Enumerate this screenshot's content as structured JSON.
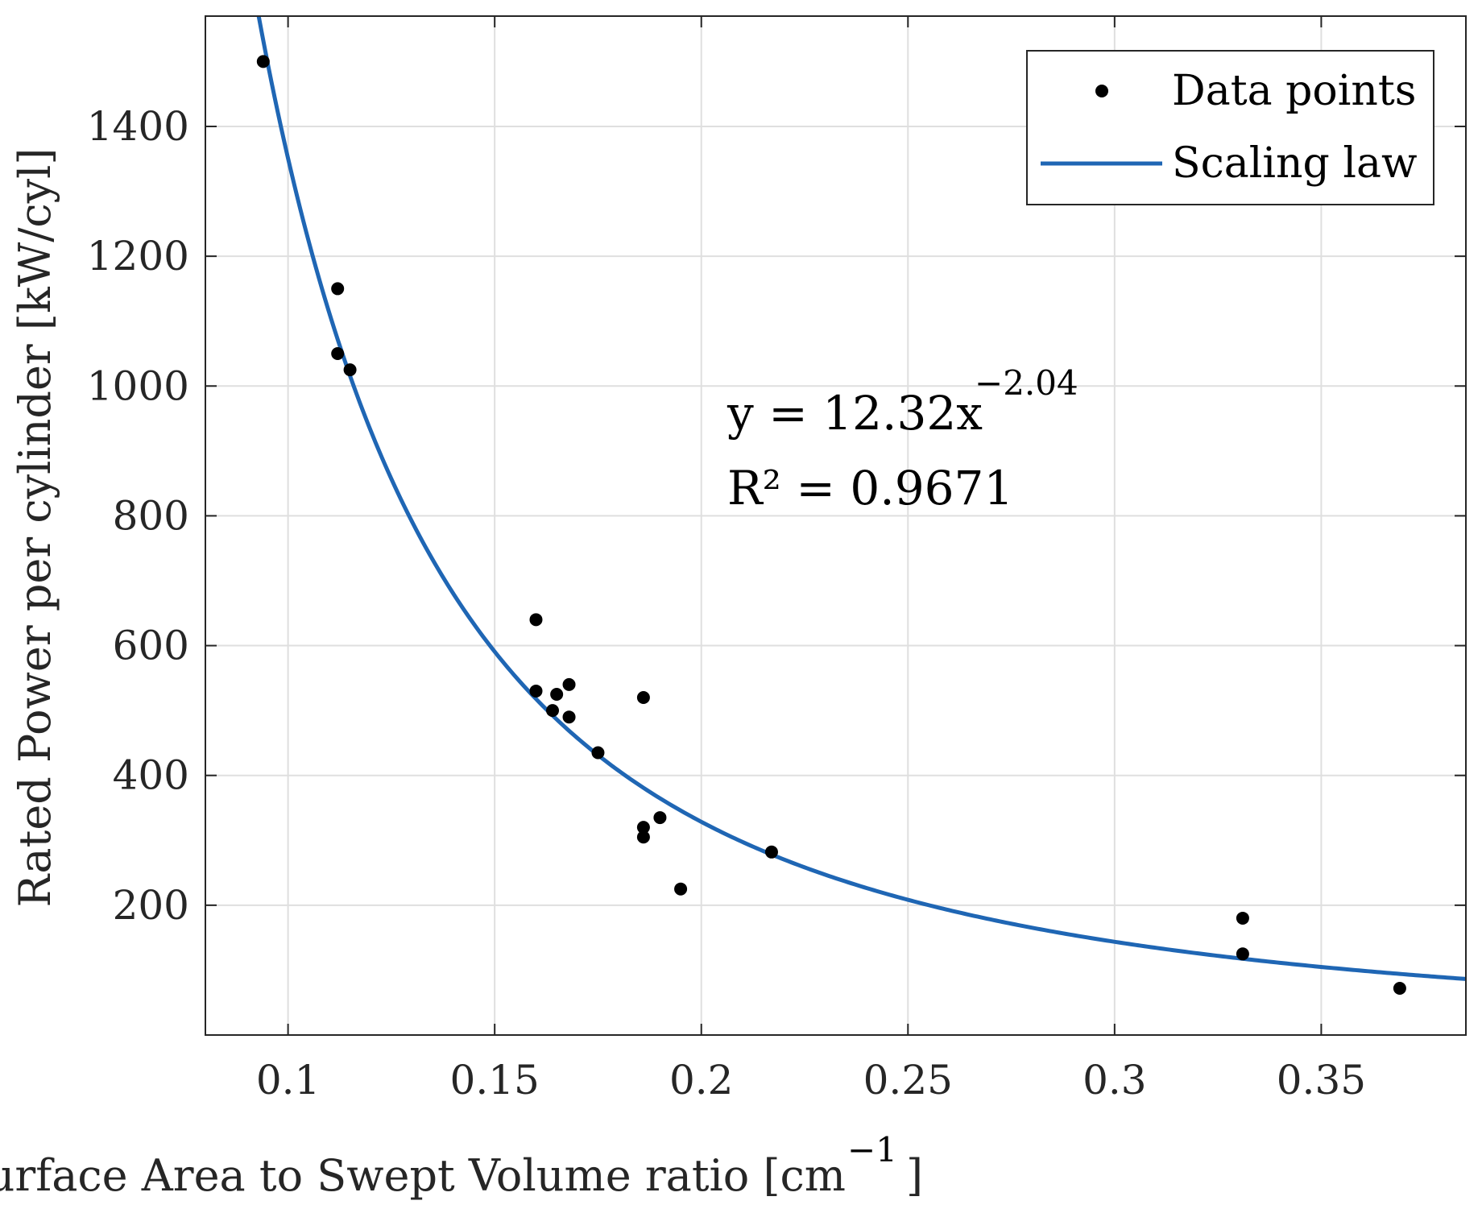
{
  "chart_data": {
    "type": "scatter",
    "xlabel": "Surface Area to Swept Volume ratio [cm",
    "xlabel_sup": "−1",
    "xlabel_suffix": "]",
    "ylabel": "Rated Power per cylinder [kW/cyl]",
    "xlim": [
      0.08,
      0.385
    ],
    "ylim": [
      0,
      1570
    ],
    "xticks": [
      0.1,
      0.15,
      0.2,
      0.25,
      0.3,
      0.35
    ],
    "xtick_labels": [
      "0.1",
      "0.15",
      "0.2",
      "0.25",
      "0.3",
      "0.35"
    ],
    "yticks": [
      200,
      400,
      600,
      800,
      1000,
      1200,
      1400
    ],
    "ytick_labels": [
      "200",
      "400",
      "600",
      "800",
      "1000",
      "1200",
      "1400"
    ],
    "grid": true,
    "legend": {
      "position": "top-right",
      "entries": [
        "Data points",
        "Scaling law"
      ]
    },
    "annotation": {
      "line1": "y = 12.32x",
      "line1_sup": "−2.04",
      "line2": "R² = 0.9671"
    },
    "series": [
      {
        "name": "Data points",
        "kind": "scatter",
        "color": "#000000",
        "points": [
          [
            0.094,
            1500
          ],
          [
            0.112,
            1150
          ],
          [
            0.112,
            1050
          ],
          [
            0.115,
            1025
          ],
          [
            0.16,
            640
          ],
          [
            0.16,
            530
          ],
          [
            0.165,
            525
          ],
          [
            0.164,
            500
          ],
          [
            0.168,
            540
          ],
          [
            0.168,
            490
          ],
          [
            0.175,
            435
          ],
          [
            0.186,
            520
          ],
          [
            0.186,
            320
          ],
          [
            0.186,
            305
          ],
          [
            0.19,
            335
          ],
          [
            0.195,
            225
          ],
          [
            0.217,
            282
          ],
          [
            0.331,
            180
          ],
          [
            0.331,
            125
          ],
          [
            0.369,
            72
          ]
        ]
      },
      {
        "name": "Scaling law",
        "kind": "line",
        "color": "#1f66b4",
        "coefficient": 12.32,
        "exponent": -2.04,
        "x_range": [
          0.08,
          0.385
        ]
      }
    ]
  },
  "colors": {
    "axis": "#262626",
    "grid": "#dfdfdf",
    "line": "#1f66b4",
    "points": "#000000"
  }
}
